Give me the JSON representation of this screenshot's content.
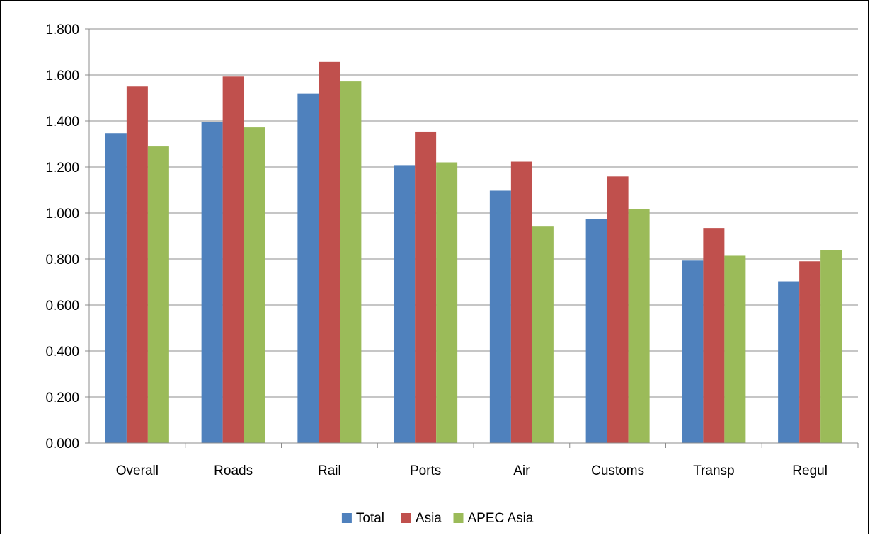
{
  "chart_data": {
    "type": "bar",
    "title": "",
    "xlabel": "",
    "ylabel": "",
    "ylim": [
      0,
      1.8
    ],
    "y_ticks": [
      "0.000",
      "0.200",
      "0.400",
      "0.600",
      "0.800",
      "1.000",
      "1.200",
      "1.400",
      "1.600",
      "1.800"
    ],
    "grid": true,
    "legend_position": "bottom",
    "categories": [
      "Overall",
      "Roads",
      "Rail",
      "Ports",
      "Air",
      "Customs",
      "Transp",
      "Regul"
    ],
    "series": [
      {
        "name": "Total",
        "color": "#4F81BD",
        "values": [
          1.347,
          1.394,
          1.518,
          1.208,
          1.097,
          0.973,
          0.793,
          0.703
        ]
      },
      {
        "name": "Asia",
        "color": "#C0504D",
        "values": [
          1.55,
          1.593,
          1.659,
          1.354,
          1.223,
          1.159,
          0.935,
          0.79
        ]
      },
      {
        "name": "APEC Asia",
        "color": "#9BBB59",
        "values": [
          1.289,
          1.372,
          1.572,
          1.22,
          0.941,
          1.017,
          0.814,
          0.84
        ]
      }
    ]
  }
}
